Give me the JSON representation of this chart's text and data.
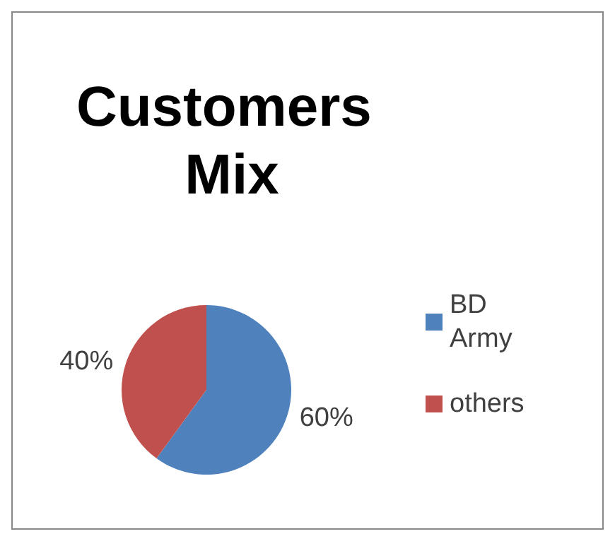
{
  "chart_data": {
    "type": "pie",
    "title": "Customers Mix",
    "categories": [
      "BD Army",
      "others"
    ],
    "values": [
      60,
      40
    ],
    "value_labels": [
      "60%",
      "40%"
    ],
    "colors": [
      "#4f81bd",
      "#c0504d"
    ],
    "legend": "right"
  }
}
